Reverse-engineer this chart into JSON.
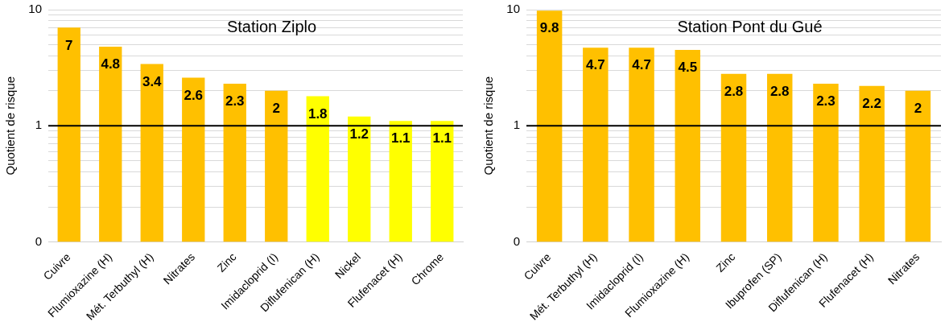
{
  "chart_data": [
    {
      "type": "bar",
      "title": "Station Ziplo",
      "ylabel": "Quotient de risque",
      "categories": [
        "Cuivre",
        "Flumioxazine (H)",
        "Mét. Terbuthyl (H)",
        "Nitrates",
        "Zinc",
        "Imidacloprid (I)",
        "Diflufenican (H)",
        "Nickel",
        "Flufenacet (H)",
        "Chrome"
      ],
      "values": [
        7,
        4.8,
        3.4,
        2.6,
        2.3,
        2,
        1.8,
        1.2,
        1.1,
        1.1
      ],
      "colors": [
        "#ffc000",
        "#ffc000",
        "#ffc000",
        "#ffc000",
        "#ffc000",
        "#ffc000",
        "#ffff00",
        "#ffff00",
        "#ffff00",
        "#ffff00"
      ],
      "log": true,
      "ylim": [
        0.1,
        10
      ],
      "yticks": [
        {
          "value": 0.1,
          "label": "0"
        },
        {
          "value": 0.2,
          "label": null
        },
        {
          "value": 0.3,
          "label": null
        },
        {
          "value": 0.4,
          "label": null
        },
        {
          "value": 0.5,
          "label": null
        },
        {
          "value": 0.6,
          "label": null
        },
        {
          "value": 0.7,
          "label": null
        },
        {
          "value": 0.8,
          "label": null
        },
        {
          "value": 0.9,
          "label": null
        },
        {
          "value": 1,
          "label": "1"
        },
        {
          "value": 2,
          "label": null
        },
        {
          "value": 3,
          "label": null
        },
        {
          "value": 4,
          "label": null
        },
        {
          "value": 5,
          "label": null
        },
        {
          "value": 6,
          "label": null
        },
        {
          "value": 7,
          "label": null
        },
        {
          "value": 8,
          "label": null
        },
        {
          "value": 9,
          "label": null
        },
        {
          "value": 10,
          "label": "10"
        }
      ],
      "grid": "y",
      "data_labels": true,
      "ref_lines": [
        {
          "axis": "y",
          "value": 1,
          "color": "#000000"
        }
      ],
      "legend": false
    },
    {
      "type": "bar",
      "title": "Station Pont du Gué",
      "ylabel": "Quotient de risque",
      "categories": [
        "Cuivre",
        "Mét. Terbuthyl (H)",
        "Imidacloprid (I)",
        "Flumioxazine (H)",
        "Zinc",
        "Ibuprofen (SP)",
        "Diflufenican (H)",
        "Flufenacet (H)",
        "Nitrates"
      ],
      "values": [
        9.8,
        4.7,
        4.7,
        4.5,
        2.8,
        2.8,
        2.3,
        2.2,
        2
      ],
      "colors": [
        "#ffc000",
        "#ffc000",
        "#ffc000",
        "#ffc000",
        "#ffc000",
        "#ffc000",
        "#ffc000",
        "#ffc000",
        "#ffc000"
      ],
      "log": true,
      "ylim": [
        0.1,
        10
      ],
      "yticks": [
        {
          "value": 0.1,
          "label": "0"
        },
        {
          "value": 0.2,
          "label": null
        },
        {
          "value": 0.3,
          "label": null
        },
        {
          "value": 0.4,
          "label": null
        },
        {
          "value": 0.5,
          "label": null
        },
        {
          "value": 0.6,
          "label": null
        },
        {
          "value": 0.7,
          "label": null
        },
        {
          "value": 0.8,
          "label": null
        },
        {
          "value": 0.9,
          "label": null
        },
        {
          "value": 1,
          "label": "1"
        },
        {
          "value": 2,
          "label": null
        },
        {
          "value": 3,
          "label": null
        },
        {
          "value": 4,
          "label": null
        },
        {
          "value": 5,
          "label": null
        },
        {
          "value": 6,
          "label": null
        },
        {
          "value": 7,
          "label": null
        },
        {
          "value": 8,
          "label": null
        },
        {
          "value": 9,
          "label": null
        },
        {
          "value": 10,
          "label": "10"
        }
      ],
      "grid": "y",
      "data_labels": true,
      "ref_lines": [
        {
          "axis": "y",
          "value": 1,
          "color": "#000000"
        }
      ],
      "legend": false
    }
  ]
}
